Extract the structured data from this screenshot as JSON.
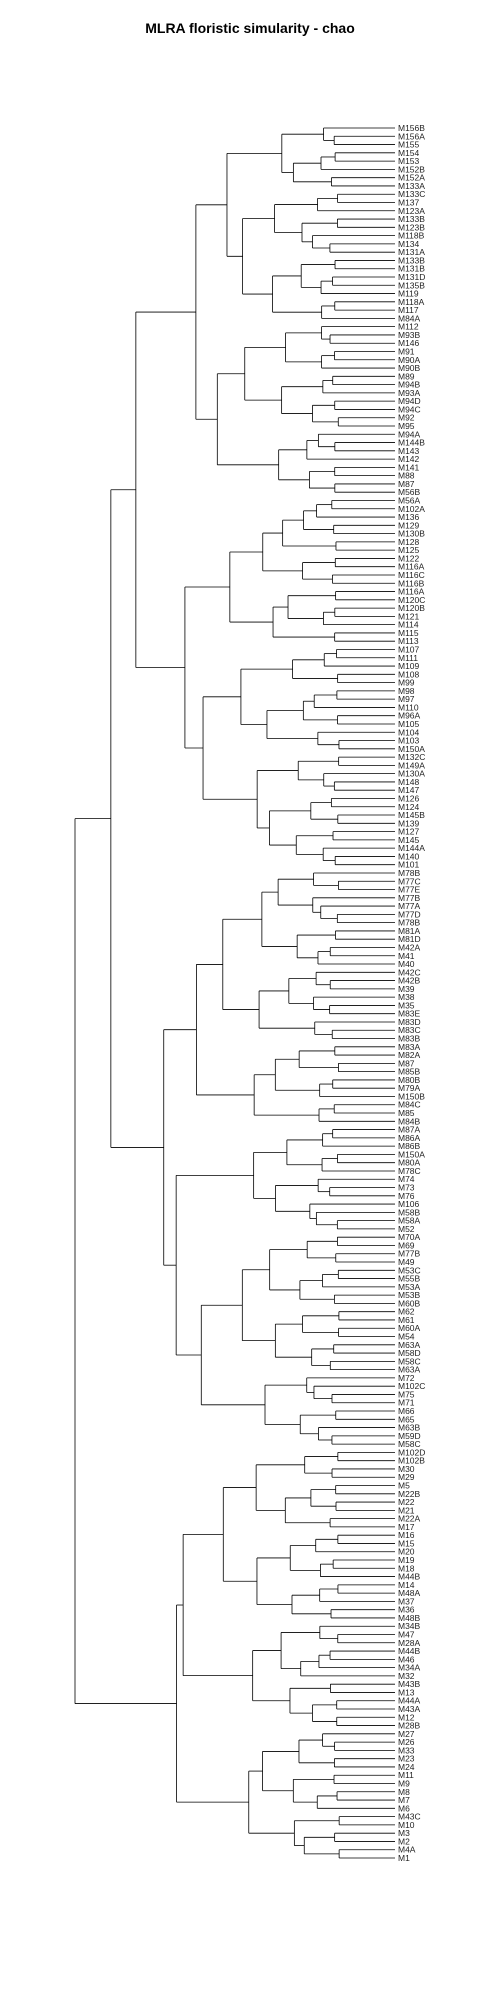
{
  "chart_data": {
    "type": "dendrogram",
    "title": "MLRA floristic simularity - chao",
    "xlabel": "",
    "ylabel": "",
    "leaves": [
      "M156B",
      "M156A",
      "M155",
      "M154",
      "M153",
      "M152B",
      "M152A",
      "M133A",
      "M133C",
      "M137",
      "M123A",
      "M133B",
      "M123B",
      "M118B",
      "M134",
      "M131A",
      "M133B",
      "M131B",
      "M131D",
      "M135B",
      "M119",
      "M118A",
      "M117",
      "M84A",
      "M112",
      "M93B",
      "M146",
      "M91",
      "M90A",
      "M90B",
      "M89",
      "M94B",
      "M93A",
      "M94D",
      "M94C",
      "M92",
      "M95",
      "M94A",
      "M144B",
      "M143",
      "M142",
      "M141",
      "M88",
      "M87",
      "M56B",
      "M56A",
      "M102A",
      "M136",
      "M129",
      "M130B",
      "M128",
      "M125",
      "M122",
      "M116A",
      "M116C",
      "M116B",
      "M116A",
      "M120C",
      "M120B",
      "M121",
      "M114",
      "M115",
      "M113",
      "M107",
      "M111",
      "M109",
      "M108",
      "M99",
      "M98",
      "M97",
      "M110",
      "M96A",
      "M105",
      "M104",
      "M103",
      "M150A",
      "M132C",
      "M149A",
      "M130A",
      "M148",
      "M147",
      "M126",
      "M124",
      "M145B",
      "M139",
      "M127",
      "M145",
      "M144A",
      "M140",
      "M101",
      "M78B",
      "M77C",
      "M77E",
      "M77B",
      "M77A",
      "M77D",
      "M78B",
      "M81A",
      "M81D",
      "M42A",
      "M41",
      "M40",
      "M42C",
      "M42B",
      "M39",
      "M38",
      "M35",
      "M83E",
      "M83D",
      "M83C",
      "M83B",
      "M83A",
      "M82A",
      "M87",
      "M85B",
      "M80B",
      "M79A",
      "M150B",
      "M84C",
      "M85",
      "M84B",
      "M87A",
      "M86A",
      "M86B",
      "M150A",
      "M80A",
      "M78C",
      "M74",
      "M73",
      "M76",
      "M106",
      "M58B",
      "M58A",
      "M52",
      "M70A",
      "M69",
      "M77B",
      "M49",
      "M53C",
      "M55B",
      "M53A",
      "M53B",
      "M60B",
      "M62",
      "M61",
      "M60A",
      "M54",
      "M63A",
      "M58D",
      "M58C",
      "M63A",
      "M72",
      "M102C",
      "M75",
      "M71",
      "M66",
      "M65",
      "M63B",
      "M59D",
      "M58C",
      "M102D",
      "M102B",
      "M30",
      "M29",
      "M5",
      "M22B",
      "M22",
      "M21",
      "M22A",
      "M17",
      "M16",
      "M15",
      "M20",
      "M19",
      "M18",
      "M44B",
      "M14",
      "M48A",
      "M37",
      "M36",
      "M48B",
      "M34B",
      "M47",
      "M28A",
      "M44B",
      "M46",
      "M34A",
      "M32",
      "M43B",
      "M13",
      "M44A",
      "M43A",
      "M12",
      "M28B",
      "M27",
      "M26",
      "M33",
      "M23",
      "M24",
      "M11",
      "M9",
      "M8",
      "M7",
      "M6",
      "M43C",
      "M10",
      "M3",
      "M2",
      "M4A",
      "M1"
    ],
    "merge_heights": [
      0,
      0.2,
      0.4,
      0.6,
      0.8,
      1.0
    ]
  }
}
